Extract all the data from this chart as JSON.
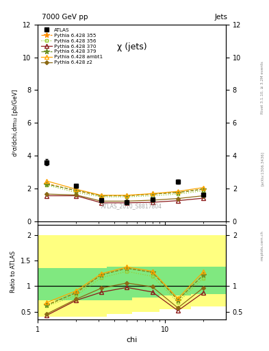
{
  "title_top": "7000 GeV pp",
  "title_right": "Jets",
  "plot_title": "χ (jets)",
  "ylabel_main": "d²σ/dchi,dm₁₂ [pb/GeV]",
  "ylabel_ratio": "Ratio to ATLAS",
  "xlabel": "chi",
  "watermark": "ATLAS_2010_S8817804",
  "rivet_label": "Rivet 3.1.10, ≥ 3.2M events",
  "arxiv_label": "[arXiv:1306.3436]",
  "mcplots_label": "mcplots.cern.ch",
  "chi_values": [
    1.18,
    2.0,
    3.16,
    5.01,
    7.94,
    12.59,
    19.95
  ],
  "atlas_y": [
    3.6,
    2.15,
    1.27,
    1.15,
    1.3,
    2.4,
    1.6
  ],
  "atlas_yerr": [
    0.18,
    0.11,
    0.06,
    0.06,
    0.07,
    0.12,
    0.09
  ],
  "p355_y": [
    2.3,
    1.85,
    1.55,
    1.55,
    1.65,
    1.75,
    1.95
  ],
  "p356_y": [
    2.2,
    1.75,
    1.48,
    1.48,
    1.55,
    1.65,
    1.85
  ],
  "p370_y": [
    1.55,
    1.55,
    1.12,
    1.12,
    1.15,
    1.25,
    1.4
  ],
  "p379_y": [
    2.25,
    1.88,
    1.55,
    1.55,
    1.65,
    1.75,
    1.95
  ],
  "pambt1_y": [
    2.45,
    1.95,
    1.58,
    1.58,
    1.68,
    1.82,
    2.05
  ],
  "pz2_y": [
    1.65,
    1.6,
    1.22,
    1.22,
    1.28,
    1.38,
    1.55
  ],
  "color_355": "#ff8c00",
  "color_356": "#9acd32",
  "color_370": "#8b1a1a",
  "color_379": "#6b8e23",
  "color_ambt1": "#ffa500",
  "color_z2": "#8b6914",
  "ylim_main": [
    0,
    12
  ],
  "ylim_ratio": [
    0.35,
    2.2
  ],
  "band_yellow_x": [
    1.0,
    1.5,
    3.5,
    5.5,
    9.0,
    16.0,
    30.0
  ],
  "band_yellow_lo": [
    0.4,
    0.4,
    0.45,
    0.5,
    0.55,
    0.6,
    0.6
  ],
  "band_yellow_hi": [
    2.0,
    2.0,
    2.0,
    2.0,
    2.0,
    2.0,
    2.0
  ],
  "band_green_x": [
    1.0,
    1.5,
    3.5,
    5.5,
    9.0,
    16.0,
    30.0
  ],
  "band_green_lo": [
    0.72,
    0.72,
    0.72,
    0.78,
    0.82,
    0.85,
    0.85
  ],
  "band_green_hi": [
    1.35,
    1.35,
    1.38,
    1.38,
    1.38,
    1.38,
    1.38
  ]
}
